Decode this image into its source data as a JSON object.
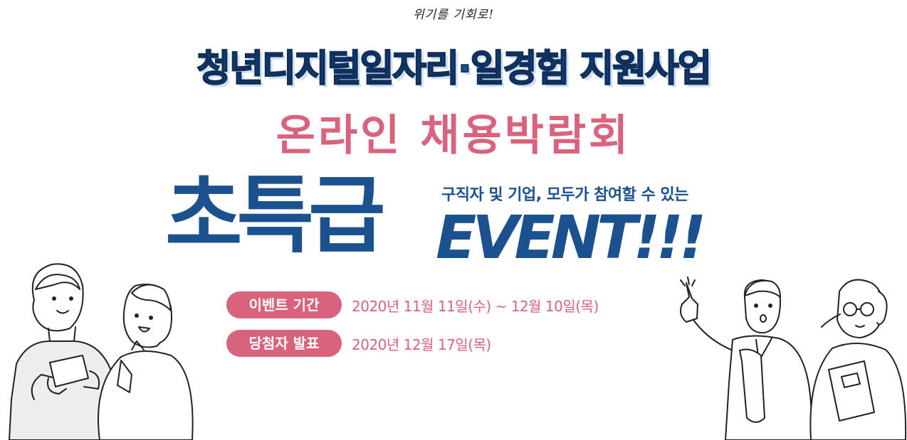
{
  "header": {
    "tagline": "위기를 기회로!",
    "title": "청년디지털일자리·일경험 지원사업",
    "subtitle": "온라인 채용박람회"
  },
  "promo": {
    "big_word": "초특급",
    "sub_caption": "구직자 및 기업, 모두가 참여할 수 있는",
    "event_word": "EVENT!!!"
  },
  "schedule": {
    "period_label": "이벤트 기간",
    "period_value": "2020년 11월 11일(수) ~ 12월 10일(목)",
    "announce_label": "당첨자 발표",
    "announce_value": "2020년 12월 17일(목)"
  },
  "colors": {
    "navy": "#1c5190",
    "pink": "#d9627c"
  }
}
